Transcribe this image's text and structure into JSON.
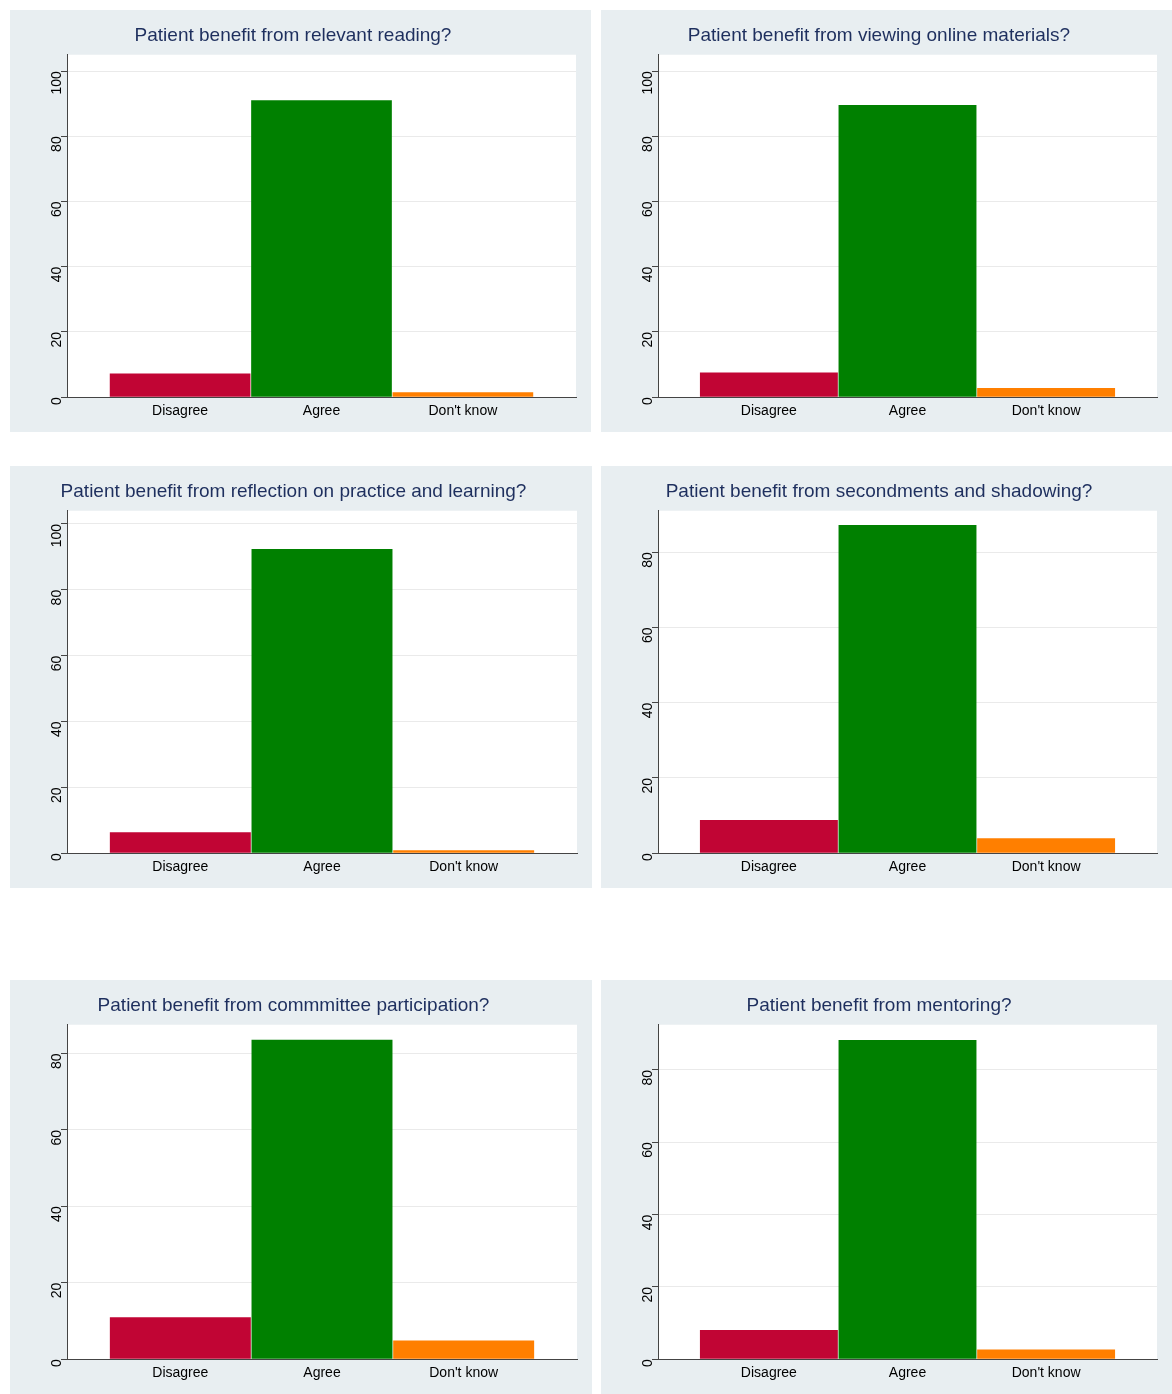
{
  "chart_data": [
    {
      "type": "bar",
      "title": "Patient benefit from relevant reading?",
      "categories": [
        "Disagree",
        "Agree",
        "Don't know"
      ],
      "values": [
        7.3,
        91.1,
        1.5
      ],
      "colors": [
        "#c10534",
        "#008000",
        "#ff7f00"
      ],
      "ylim": [
        0,
        105
      ],
      "yticks": [
        0,
        20,
        40,
        60,
        80,
        100
      ],
      "grid": "y"
    },
    {
      "type": "bar",
      "title": "Patient benefit from viewing online materials?",
      "categories": [
        "Disagree",
        "Agree",
        "Don't know"
      ],
      "values": [
        7.6,
        89.6,
        2.8
      ],
      "colors": [
        "#c10534",
        "#008000",
        "#ff7f00"
      ],
      "ylim": [
        0,
        105
      ],
      "yticks": [
        0,
        20,
        40,
        60,
        80,
        100
      ],
      "grid": "y"
    },
    {
      "type": "bar",
      "title": "Patient benefit from reflection on practice and learning?",
      "categories": [
        "Disagree",
        "Agree",
        "Don't know"
      ],
      "values": [
        6.4,
        92.4,
        0.9
      ],
      "colors": [
        "#c10534",
        "#008000",
        "#ff7f00"
      ],
      "ylim": [
        0,
        104
      ],
      "yticks": [
        0,
        20,
        40,
        60,
        80,
        100
      ],
      "grid": "y"
    },
    {
      "type": "bar",
      "title": "Patient benefit from secondments and shadowing?",
      "categories": [
        "Disagree",
        "Agree",
        "Don't know"
      ],
      "values": [
        8.8,
        87.2,
        4.0
      ],
      "colors": [
        "#c10534",
        "#008000",
        "#ff7f00"
      ],
      "ylim": [
        0,
        91
      ],
      "yticks": [
        0,
        20,
        40,
        60,
        80
      ],
      "grid": "y"
    },
    {
      "type": "bar",
      "title": "Patient benefit from commmittee participation?",
      "categories": [
        "Disagree",
        "Agree",
        "Don't know"
      ],
      "values": [
        11.0,
        83.6,
        4.9
      ],
      "colors": [
        "#c10534",
        "#008000",
        "#ff7f00"
      ],
      "ylim": [
        0,
        87.5
      ],
      "yticks": [
        0,
        20,
        40,
        60,
        80
      ],
      "grid": "y"
    },
    {
      "type": "bar",
      "title": "Patient benefit from mentoring?",
      "categories": [
        "Disagree",
        "Agree",
        "Don't know"
      ],
      "values": [
        8.1,
        88.3,
        2.7
      ],
      "colors": [
        "#c10534",
        "#008000",
        "#ff7f00"
      ],
      "ylim": [
        0,
        92.5
      ],
      "yticks": [
        0,
        20,
        40,
        60,
        80
      ],
      "grid": "y"
    }
  ]
}
